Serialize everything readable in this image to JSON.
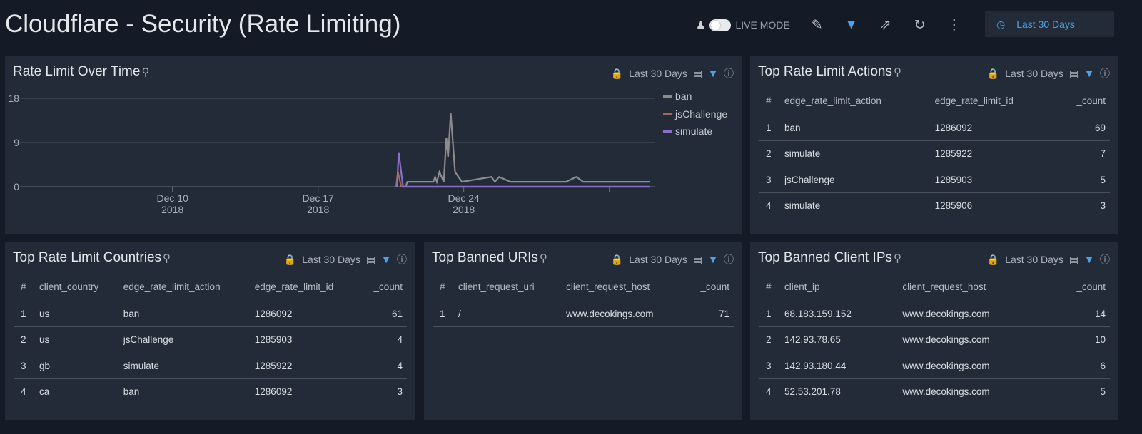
{
  "header": {
    "title": "Cloudflare - Security (Rate Limiting)",
    "live_mode": "LIVE MODE",
    "time_range": "Last 30 Days",
    "icons": [
      "user-icon",
      "pencil-icon",
      "filter-icon",
      "share-icon",
      "refresh-icon",
      "more-icon",
      "clock-icon"
    ]
  },
  "colors": {
    "accent": "#4aa3e8",
    "ban": "#8c8c8c",
    "jsChallenge": "#a0695a",
    "simulate": "#8b6fc9"
  },
  "panels": {
    "rate_over_time": {
      "title": "Rate Limit Over Time",
      "time": "Last 30 Days"
    },
    "top_actions": {
      "title": "Top Rate Limit Actions",
      "time": "Last 30 Days",
      "columns": [
        "#",
        "edge_rate_limit_action",
        "edge_rate_limit_id",
        "_count"
      ],
      "rows": [
        [
          "1",
          "ban",
          "1286092",
          "69"
        ],
        [
          "2",
          "simulate",
          "1285922",
          "7"
        ],
        [
          "3",
          "jsChallenge",
          "1285903",
          "5"
        ],
        [
          "4",
          "simulate",
          "1285906",
          "3"
        ]
      ]
    },
    "top_countries": {
      "title": "Top Rate Limit Countries",
      "time": "Last 30 Days",
      "columns": [
        "#",
        "client_country",
        "edge_rate_limit_action",
        "edge_rate_limit_id",
        "_count"
      ],
      "rows": [
        [
          "1",
          "us",
          "ban",
          "1286092",
          "61"
        ],
        [
          "2",
          "us",
          "jsChallenge",
          "1285903",
          "4"
        ],
        [
          "3",
          "gb",
          "simulate",
          "1285922",
          "4"
        ],
        [
          "4",
          "ca",
          "ban",
          "1286092",
          "3"
        ]
      ]
    },
    "top_uris": {
      "title": "Top Banned URIs",
      "time": "Last 30 Days",
      "columns": [
        "#",
        "client_request_uri",
        "client_request_host",
        "_count"
      ],
      "rows": [
        [
          "1",
          "/",
          "www.decokings.com",
          "71"
        ]
      ]
    },
    "top_ips": {
      "title": "Top Banned Client IPs",
      "time": "Last 30 Days",
      "columns": [
        "#",
        "client_ip",
        "client_request_host",
        "_count"
      ],
      "rows": [
        [
          "1",
          "68.183.159.152",
          "www.decokings.com",
          "14"
        ],
        [
          "2",
          "142.93.78.65",
          "www.decokings.com",
          "10"
        ],
        [
          "3",
          "142.93.180.44",
          "www.decokings.com",
          "6"
        ],
        [
          "4",
          "52.53.201.78",
          "www.decokings.com",
          "5"
        ]
      ]
    }
  },
  "chart_data": {
    "type": "line",
    "title": "Rate Limit Over Time",
    "xlim": [
      "2018-12-02T16:00",
      "2019-01-02T05:00"
    ],
    "ylim": [
      0,
      18
    ],
    "yticks": [
      0,
      9,
      18
    ],
    "xticks": [
      {
        "date": "2018-12-10",
        "label": [
          "Dec 10",
          "2018"
        ]
      },
      {
        "date": "2018-12-17",
        "label": [
          "Dec 17",
          "2018"
        ]
      },
      {
        "date": "2018-12-24",
        "label": [
          "Dec 24",
          "2018"
        ]
      },
      {
        "date": "2018-12-31",
        "label": [
          "",
          ""
        ]
      }
    ],
    "grid": true,
    "legend": "right",
    "series": [
      {
        "name": "ban",
        "points": [
          [
            "2018-12-21T05:00",
            0
          ],
          [
            "2018-12-21T07:00",
            1
          ],
          [
            "2018-12-22T13:00",
            1
          ],
          [
            "2018-12-22T15:00",
            2
          ],
          [
            "2018-12-22T17:00",
            1
          ],
          [
            "2018-12-22T20:00",
            3
          ],
          [
            "2018-12-23T01:00",
            1
          ],
          [
            "2018-12-23T04:00",
            10
          ],
          [
            "2018-12-23T06:00",
            6
          ],
          [
            "2018-12-23T09:00",
            15
          ],
          [
            "2018-12-23T14:00",
            3
          ],
          [
            "2018-12-23T22:00",
            1
          ],
          [
            "2018-12-25T08:00",
            2
          ],
          [
            "2018-12-25T12:00",
            1
          ],
          [
            "2018-12-25T17:00",
            2
          ],
          [
            "2018-12-26T06:00",
            1
          ],
          [
            "2018-12-28T22:00",
            1
          ],
          [
            "2018-12-29T10:00",
            2
          ],
          [
            "2018-12-29T18:00",
            1
          ],
          [
            "2019-01-01T23:00",
            1
          ]
        ]
      },
      {
        "name": "jsChallenge",
        "points": [
          [
            "2018-12-20T18:00",
            0
          ],
          [
            "2018-12-20T20:00",
            3
          ],
          [
            "2018-12-21T00:00",
            0
          ],
          [
            "2019-01-01T23:00",
            0
          ]
        ]
      },
      {
        "name": "simulate",
        "points": [
          [
            "2018-12-20T19:00",
            0
          ],
          [
            "2018-12-20T21:00",
            7
          ],
          [
            "2018-12-21T02:00",
            0
          ],
          [
            "2019-01-01T23:00",
            0
          ]
        ]
      }
    ]
  }
}
